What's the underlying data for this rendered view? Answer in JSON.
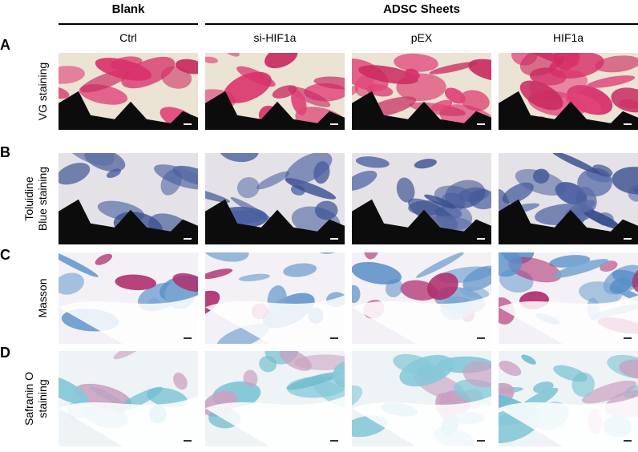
{
  "header": {
    "groups": [
      "Blank",
      "ADSC Sheets"
    ]
  },
  "columns": [
    "Ctrl",
    "si-HIF1a",
    "pEX",
    "HIF1a"
  ],
  "rows": [
    {
      "letter": "A",
      "label_lines": [
        "VG staining"
      ]
    },
    {
      "letter": "B",
      "label_lines": [
        "Toluidine",
        "Blue staining"
      ]
    },
    {
      "letter": "C",
      "label_lines": [
        "Masson"
      ]
    },
    {
      "letter": "D",
      "label_lines": [
        "Safranin O",
        "staining"
      ]
    }
  ]
}
